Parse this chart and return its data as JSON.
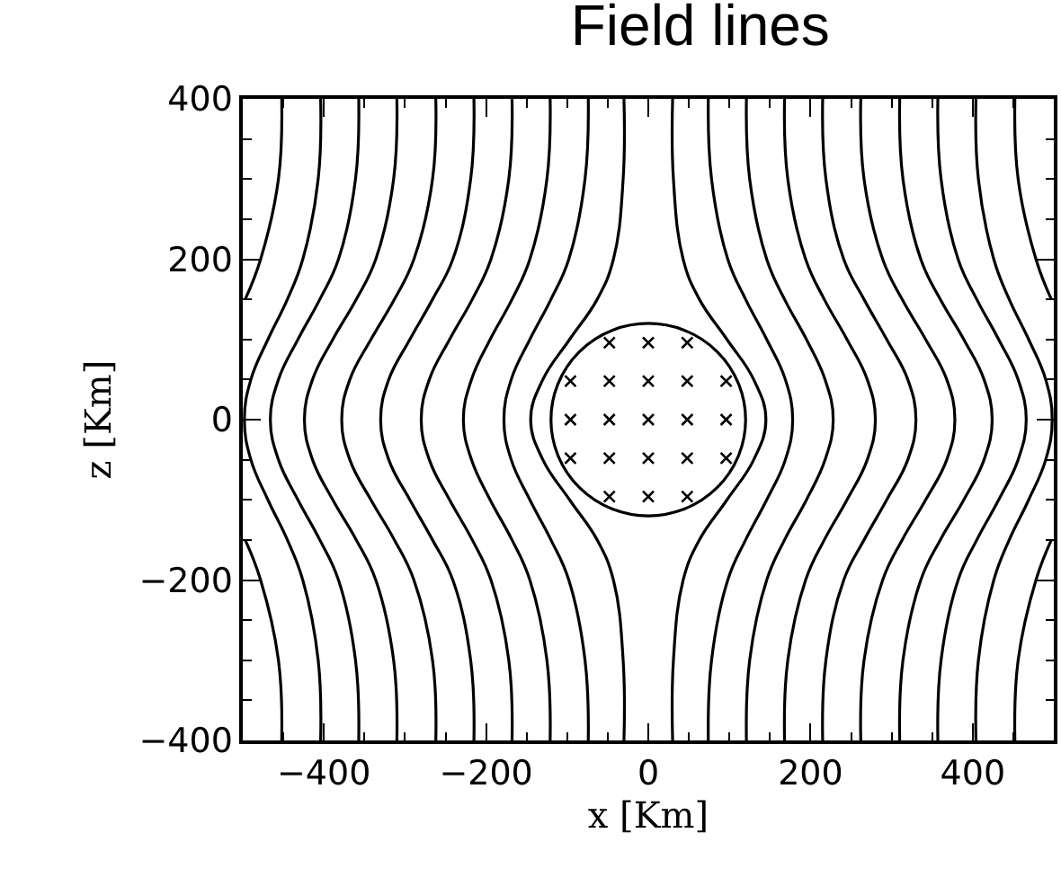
{
  "chart_data": {
    "type": "line",
    "title": "Field lines",
    "xlabel": "x [Km]",
    "ylabel": "z [Km]",
    "grid": false,
    "xlim": [
      -500,
      500
    ],
    "ylim": [
      -400,
      400
    ],
    "xticks": [
      {
        "value": -450,
        "label": null
      },
      -400,
      {
        "value": -350,
        "label": null
      },
      {
        "value": -300,
        "label": null
      },
      {
        "value": -250,
        "label": null
      },
      -200,
      {
        "value": -150,
        "label": null
      },
      {
        "value": -100,
        "label": null
      },
      {
        "value": -50,
        "label": null
      },
      0,
      {
        "value": 50,
        "label": null
      },
      {
        "value": 100,
        "label": null
      },
      {
        "value": 150,
        "label": null
      },
      200,
      {
        "value": 250,
        "label": null
      },
      {
        "value": 300,
        "label": null
      },
      {
        "value": 350,
        "label": null
      },
      400,
      {
        "value": 450,
        "label": null
      }
    ],
    "yticks": [
      -400,
      {
        "value": -350,
        "label": null
      },
      {
        "value": -300,
        "label": null
      },
      {
        "value": -250,
        "label": null
      },
      -200,
      {
        "value": -150,
        "label": null
      },
      {
        "value": -100,
        "label": null
      },
      {
        "value": -50,
        "label": null
      },
      0,
      {
        "value": 50,
        "label": null
      },
      {
        "value": 100,
        "label": null
      },
      {
        "value": 150,
        "label": null
      },
      200,
      {
        "value": 250,
        "label": null
      },
      {
        "value": 300,
        "label": null
      },
      {
        "value": 350,
        "label": null
      },
      400
    ],
    "series": [
      {
        "type": "line",
        "color": "#000000",
        "x": [
          30,
          31,
          43,
          63,
          97,
          130,
          145,
          130,
          97,
          63,
          43,
          31,
          30
        ],
        "values": [
          -400,
          -300,
          -200,
          -150,
          -100,
          -50,
          0,
          50,
          100,
          150,
          200,
          300,
          400
        ]
      },
      {
        "type": "line",
        "color": "#000000",
        "x": [
          74,
          78,
          98,
          120,
          146,
          169,
          178,
          169,
          146,
          120,
          98,
          78,
          74
        ],
        "values": [
          -400,
          -300,
          -200,
          -150,
          -100,
          -50,
          0,
          50,
          100,
          150,
          200,
          300,
          400
        ]
      },
      {
        "type": "line",
        "color": "#000000",
        "x": [
          121,
          125,
          146,
          168,
          195,
          218,
          228,
          218,
          195,
          168,
          146,
          125,
          121
        ],
        "values": [
          -400,
          -300,
          -200,
          -150,
          -100,
          -50,
          0,
          50,
          100,
          150,
          200,
          300,
          400
        ]
      },
      {
        "type": "line",
        "color": "#000000",
        "x": [
          168,
          172,
          194,
          217,
          245,
          270,
          280,
          270,
          245,
          217,
          194,
          172,
          168
        ],
        "values": [
          -400,
          -300,
          -200,
          -150,
          -100,
          -50,
          0,
          50,
          100,
          150,
          200,
          300,
          400
        ]
      },
      {
        "type": "line",
        "color": "#000000",
        "x": [
          215,
          219,
          241,
          266,
          294,
          320,
          330,
          320,
          294,
          266,
          241,
          219,
          215
        ],
        "values": [
          -400,
          -300,
          -200,
          -150,
          -100,
          -50,
          0,
          50,
          100,
          150,
          200,
          300,
          400
        ]
      },
      {
        "type": "line",
        "color": "#000000",
        "x": [
          262,
          266,
          289,
          313,
          342,
          368,
          378,
          368,
          342,
          313,
          289,
          266,
          262
        ],
        "values": [
          -400,
          -300,
          -200,
          -150,
          -100,
          -50,
          0,
          50,
          100,
          150,
          200,
          300,
          400
        ]
      },
      {
        "type": "line",
        "color": "#000000",
        "x": [
          310,
          314,
          336,
          360,
          389,
          414,
          424,
          414,
          389,
          360,
          336,
          314,
          310
        ],
        "values": [
          -400,
          -300,
          -200,
          -150,
          -100,
          -50,
          0,
          50,
          100,
          150,
          200,
          300,
          400
        ]
      },
      {
        "type": "line",
        "color": "#000000",
        "x": [
          357,
          361,
          382,
          405,
          432,
          456,
          466,
          456,
          432,
          405,
          382,
          361,
          357
        ],
        "values": [
          -400,
          -300,
          -200,
          -150,
          -100,
          -50,
          0,
          50,
          100,
          150,
          200,
          300,
          400
        ]
      },
      {
        "type": "line",
        "color": "#000000",
        "x": [
          404,
          407,
          426,
          445,
          469,
          490,
          498,
          490,
          469,
          445,
          426,
          407,
          404
        ],
        "values": [
          -400,
          -300,
          -200,
          -150,
          -100,
          -50,
          0,
          50,
          100,
          150,
          200,
          300,
          400
        ]
      },
      {
        "type": "line",
        "color": "#000000",
        "x": [
          452,
          456,
          478,
          497
        ],
        "values": [
          400,
          300,
          200,
          150
        ]
      },
      {
        "type": "line",
        "color": "#000000",
        "x": [
          452,
          456,
          478,
          497
        ],
        "values": [
          -400,
          -300,
          -200,
          -150
        ]
      },
      {
        "type": "line",
        "color": "#000000",
        "x": [
          -30,
          -31,
          -43,
          -63,
          -97,
          -130,
          -145,
          -130,
          -97,
          -63,
          -43,
          -31,
          -30
        ],
        "values": [
          -400,
          -300,
          -200,
          -150,
          -100,
          -50,
          0,
          50,
          100,
          150,
          200,
          300,
          400
        ]
      },
      {
        "type": "line",
        "color": "#000000",
        "x": [
          -74,
          -78,
          -98,
          -120,
          -146,
          -169,
          -178,
          -169,
          -146,
          -120,
          -98,
          -78,
          -74
        ],
        "values": [
          -400,
          -300,
          -200,
          -150,
          -100,
          -50,
          0,
          50,
          100,
          150,
          200,
          300,
          400
        ]
      },
      {
        "type": "line",
        "color": "#000000",
        "x": [
          -121,
          -125,
          -146,
          -168,
          -195,
          -218,
          -228,
          -218,
          -195,
          -168,
          -146,
          -125,
          -121
        ],
        "values": [
          -400,
          -300,
          -200,
          -150,
          -100,
          -50,
          0,
          50,
          100,
          150,
          200,
          300,
          400
        ]
      },
      {
        "type": "line",
        "color": "#000000",
        "x": [
          -168,
          -172,
          -194,
          -217,
          -245,
          -270,
          -280,
          -270,
          -245,
          -217,
          -194,
          -172,
          -168
        ],
        "values": [
          -400,
          -300,
          -200,
          -150,
          -100,
          -50,
          0,
          50,
          100,
          150,
          200,
          300,
          400
        ]
      },
      {
        "type": "line",
        "color": "#000000",
        "x": [
          -215,
          -219,
          -241,
          -266,
          -294,
          -320,
          -330,
          -320,
          -294,
          -266,
          -241,
          -219,
          -215
        ],
        "values": [
          -400,
          -300,
          -200,
          -150,
          -100,
          -50,
          0,
          50,
          100,
          150,
          200,
          300,
          400
        ]
      },
      {
        "type": "line",
        "color": "#000000",
        "x": [
          -262,
          -266,
          -289,
          -313,
          -342,
          -368,
          -378,
          -368,
          -342,
          -313,
          -289,
          -266,
          -262
        ],
        "values": [
          -400,
          -300,
          -200,
          -150,
          -100,
          -50,
          0,
          50,
          100,
          150,
          200,
          300,
          400
        ]
      },
      {
        "type": "line",
        "color": "#000000",
        "x": [
          -310,
          -314,
          -336,
          -360,
          -389,
          -414,
          -424,
          -414,
          -389,
          -360,
          -336,
          -314,
          -310
        ],
        "values": [
          -400,
          -300,
          -200,
          -150,
          -100,
          -50,
          0,
          50,
          100,
          150,
          200,
          300,
          400
        ]
      },
      {
        "type": "line",
        "color": "#000000",
        "x": [
          -357,
          -361,
          -382,
          -405,
          -432,
          -456,
          -466,
          -456,
          -432,
          -405,
          -382,
          -361,
          -357
        ],
        "values": [
          -400,
          -300,
          -200,
          -150,
          -100,
          -50,
          0,
          50,
          100,
          150,
          200,
          300,
          400
        ]
      },
      {
        "type": "line",
        "color": "#000000",
        "x": [
          -404,
          -407,
          -426,
          -445,
          -469,
          -490,
          -498,
          -490,
          -469,
          -445,
          -426,
          -407,
          -404
        ],
        "values": [
          -400,
          -300,
          -200,
          -150,
          -100,
          -50,
          0,
          50,
          100,
          150,
          200,
          300,
          400
        ]
      },
      {
        "type": "line",
        "color": "#000000",
        "x": [
          -452,
          -456,
          -478,
          -497
        ],
        "values": [
          400,
          300,
          200,
          150
        ]
      },
      {
        "type": "line",
        "color": "#000000",
        "x": [
          -452,
          -456,
          -478,
          -497
        ],
        "values": [
          -400,
          -300,
          -200,
          -150
        ]
      },
      {
        "type": "scatter",
        "marker": "cross",
        "color": "#000000",
        "x": [
          -48,
          0,
          48,
          -96,
          -48,
          0,
          48,
          96,
          -96,
          -48,
          0,
          48,
          96,
          -96,
          -48,
          0,
          48,
          96,
          -48,
          0,
          48
        ],
        "values": [
          96,
          96,
          96,
          48,
          48,
          48,
          48,
          48,
          0,
          0,
          0,
          0,
          0,
          -48,
          -48,
          -48,
          -48,
          -48,
          -96,
          -96,
          -96
        ]
      }
    ]
  }
}
